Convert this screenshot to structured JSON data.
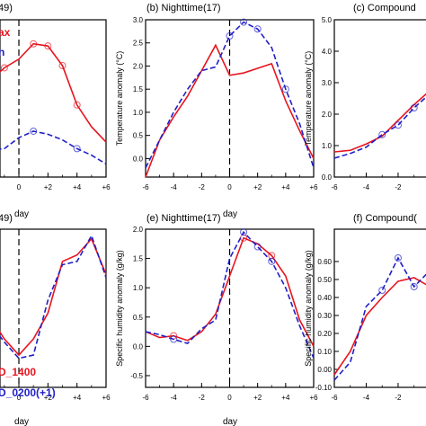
{
  "colors": {
    "red": "#e8141e",
    "blue": "#2020c8",
    "axis": "#000000"
  },
  "chart_data": [
    {
      "type": "line",
      "title": "49)",
      "xlabel": "day",
      "ylabel": "",
      "xlim": [
        -6,
        6
      ],
      "x_ticks": [
        "0",
        "+2",
        "+4",
        "+6"
      ],
      "x": [
        -6,
        -5,
        -4,
        -3,
        -2,
        -1,
        0,
        1,
        2,
        3,
        4,
        5,
        6
      ],
      "legend": [
        "ax",
        "n"
      ],
      "series": [
        {
          "name": "ax",
          "color": "red",
          "dash": false,
          "marker_idx": [
            5,
            7,
            8,
            9,
            10
          ],
          "values": [
            0.55,
            0.7,
            0.85,
            1.2,
            1.6,
            1.9,
            2.1,
            2.45,
            2.4,
            1.95,
            1.05,
            0.55,
            0.2
          ]
        },
        {
          "name": "n",
          "color": "blue",
          "dash": true,
          "marker_idx": [
            7,
            10
          ],
          "values": [
            -0.1,
            -0.05,
            0.0,
            0.02,
            0.02,
            0.05,
            0.3,
            0.45,
            0.38,
            0.25,
            0.05,
            -0.1,
            -0.3
          ]
        }
      ]
    },
    {
      "type": "line",
      "title": "(b) Nighttime(17)",
      "xlabel": "day",
      "ylabel": "Temperature anomaly (°C)",
      "xlim": [
        -6,
        6
      ],
      "ylim": [
        0.0,
        3.0
      ],
      "x_ticks": [
        "-6",
        "-4",
        "-2",
        "0",
        "+2",
        "+4",
        "+6"
      ],
      "y_ticks": [
        "0.0",
        "0.5",
        "1.0",
        "1.5",
        "2.0",
        "2.5",
        "3.0"
      ],
      "x": [
        -6,
        -5,
        -4,
        -3,
        -2,
        -1,
        0,
        1,
        2,
        3,
        4,
        5,
        6
      ],
      "series": [
        {
          "name": "",
          "color": "red",
          "dash": false,
          "marker_idx": [],
          "values": [
            -0.4,
            0.4,
            0.9,
            1.35,
            1.9,
            2.45,
            1.8,
            1.85,
            1.95,
            2.05,
            1.25,
            0.6,
            0.0
          ]
        },
        {
          "name": "",
          "color": "blue",
          "dash": true,
          "marker_idx": [
            6,
            7,
            8,
            10
          ],
          "values": [
            -0.2,
            0.4,
            1.0,
            1.5,
            1.9,
            1.98,
            2.65,
            2.95,
            2.8,
            2.4,
            1.5,
            0.75,
            -0.2
          ]
        }
      ]
    },
    {
      "type": "line",
      "title": "(c) Compound",
      "xlabel": "",
      "ylabel": "Temperature anomaly (°C)",
      "xlim": [
        -6,
        6
      ],
      "ylim": [
        0.0,
        5.0
      ],
      "x_ticks": [
        "-6",
        "-4",
        "-2"
      ],
      "y_ticks": [
        "0.0",
        "1.0",
        "2.0",
        "3.0",
        "4.0",
        "5.0"
      ],
      "x": [
        -6,
        -5,
        -4,
        -3,
        -2,
        -1,
        0
      ],
      "series": [
        {
          "name": "",
          "color": "red",
          "dash": false,
          "marker_idx": [],
          "values": [
            0.8,
            0.85,
            1.05,
            1.3,
            1.8,
            2.3,
            2.75
          ]
        },
        {
          "name": "",
          "color": "blue",
          "dash": true,
          "marker_idx": [
            3,
            4,
            5
          ],
          "values": [
            0.6,
            0.75,
            0.95,
            1.35,
            1.65,
            2.2,
            2.65
          ]
        }
      ]
    },
    {
      "type": "line",
      "title": "49)",
      "xlabel": "day",
      "ylabel": "",
      "xlim": [
        -6,
        6
      ],
      "x_ticks": [
        "0",
        "+2",
        "+4",
        "+6"
      ],
      "x": [
        -6,
        -5,
        -4,
        -3,
        -2,
        -1,
        0,
        1,
        2,
        3,
        4,
        5,
        6
      ],
      "legend": [
        "D_1400",
        "D_0200(+1)"
      ],
      "series": [
        {
          "name": "D_1400",
          "color": "red",
          "dash": false,
          "marker_idx": [],
          "values": [
            1.6,
            1.4,
            1.2,
            0.95,
            0.7,
            0.35,
            0.1,
            0.35,
            0.75,
            1.55,
            1.65,
            1.9,
            1.35
          ]
        },
        {
          "name": "D_0200(+1)",
          "color": "blue",
          "dash": true,
          "marker_idx": [],
          "values": [
            1.65,
            1.4,
            1.15,
            0.9,
            0.6,
            0.3,
            0.05,
            0.1,
            0.95,
            1.5,
            1.55,
            1.95,
            1.3
          ]
        }
      ]
    },
    {
      "type": "line",
      "title": "(e) Nighttime(17)",
      "xlabel": "day",
      "ylabel": "Specific humidity anomaly (g/kg)",
      "xlim": [
        -6,
        6
      ],
      "ylim": [
        -0.7,
        2.0
      ],
      "x_ticks": [
        "-6",
        "-4",
        "-2",
        "0",
        "+2",
        "+4",
        "+6"
      ],
      "y_ticks": [
        "-0.5",
        "0.0",
        "0.5",
        "1.0",
        "1.5",
        "2.0"
      ],
      "x": [
        -6,
        -5,
        -4,
        -3,
        -2,
        -1,
        0,
        1,
        2,
        3,
        4,
        5,
        6
      ],
      "series": [
        {
          "name": "",
          "color": "red",
          "dash": false,
          "marker_idx": [
            2,
            7,
            9
          ],
          "values": [
            0.25,
            0.15,
            0.18,
            0.1,
            0.25,
            0.55,
            1.2,
            1.85,
            1.75,
            1.55,
            1.2,
            0.45,
            0.0
          ]
        },
        {
          "name": "",
          "color": "blue",
          "dash": true,
          "marker_idx": [
            2,
            7,
            8,
            9
          ],
          "values": [
            0.25,
            0.2,
            0.12,
            0.05,
            0.3,
            0.45,
            1.5,
            1.95,
            1.7,
            1.45,
            1.0,
            0.35,
            -0.2
          ]
        }
      ]
    },
    {
      "type": "line",
      "title": "(f) Compound(",
      "xlabel": "",
      "ylabel": "Specific humidity anomaly (g/kg)",
      "xlim": [
        -6,
        6
      ],
      "ylim": [
        -0.1,
        0.8
      ],
      "x_ticks": [
        "-6",
        "-4",
        "-2"
      ],
      "y_ticks": [
        "-0.10",
        "0.00",
        "0.10",
        "0.20",
        "0.30",
        "0.40",
        "0.50",
        "0.60"
      ],
      "x": [
        -6,
        -5,
        -4,
        -3,
        -2,
        -1,
        0
      ],
      "series": [
        {
          "name": "",
          "color": "red",
          "dash": false,
          "marker_idx": [],
          "values": [
            -0.03,
            0.1,
            0.3,
            0.4,
            0.49,
            0.51,
            0.46
          ]
        },
        {
          "name": "",
          "color": "blue",
          "dash": true,
          "marker_idx": [
            3,
            4,
            5
          ],
          "values": [
            -0.06,
            0.04,
            0.35,
            0.44,
            0.62,
            0.46,
            0.55
          ]
        }
      ]
    }
  ]
}
